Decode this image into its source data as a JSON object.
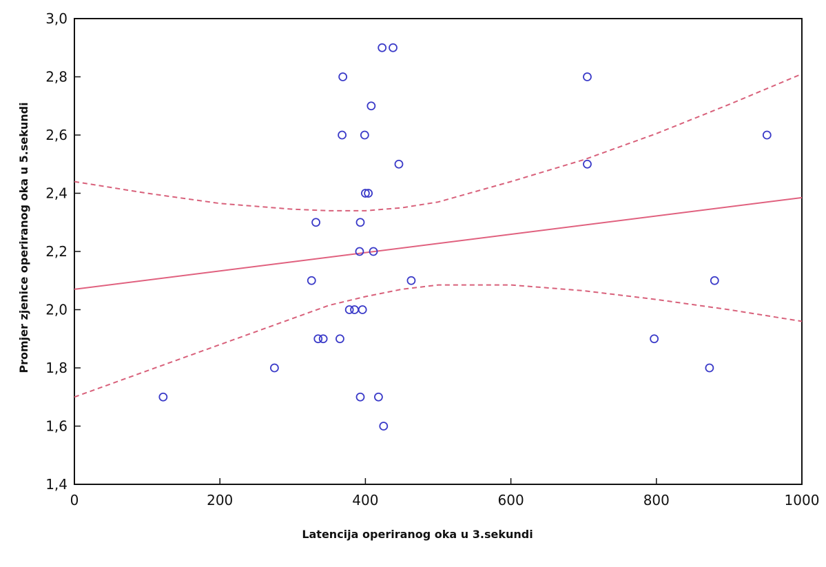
{
  "chart_data": {
    "type": "scatter",
    "title": "",
    "xlabel": "Latencija operiranog oka u 3.sekundi",
    "ylabel": "Promjer zjenice operiranog oka u 5.sekundi",
    "xlim": [
      0,
      1000
    ],
    "ylim": [
      1.4,
      3.0
    ],
    "x_ticks": [
      0,
      200,
      400,
      600,
      800,
      1000
    ],
    "x_tick_labels": [
      "0",
      "200",
      "400",
      "600",
      "800",
      "1000"
    ],
    "y_ticks": [
      1.4,
      1.6,
      1.8,
      2.0,
      2.2,
      2.4,
      2.6,
      2.8,
      3.0
    ],
    "y_tick_labels": [
      "1,4",
      "1,6",
      "1,8",
      "2,0",
      "2,2",
      "2,4",
      "2,6",
      "2,8",
      "3,0"
    ],
    "grid": false,
    "points": [
      {
        "x": 122,
        "y": 1.7
      },
      {
        "x": 275,
        "y": 1.8
      },
      {
        "x": 326,
        "y": 2.1
      },
      {
        "x": 332,
        "y": 2.3
      },
      {
        "x": 335,
        "y": 1.9
      },
      {
        "x": 342,
        "y": 1.9
      },
      {
        "x": 365,
        "y": 1.9
      },
      {
        "x": 368,
        "y": 2.6
      },
      {
        "x": 369,
        "y": 2.8
      },
      {
        "x": 378,
        "y": 2.0
      },
      {
        "x": 385,
        "y": 2.0
      },
      {
        "x": 392,
        "y": 2.2
      },
      {
        "x": 393,
        "y": 2.3
      },
      {
        "x": 393,
        "y": 1.7
      },
      {
        "x": 396,
        "y": 2.0
      },
      {
        "x": 399,
        "y": 2.6
      },
      {
        "x": 400,
        "y": 2.4
      },
      {
        "x": 404,
        "y": 2.4
      },
      {
        "x": 408,
        "y": 2.7
      },
      {
        "x": 411,
        "y": 2.2
      },
      {
        "x": 418,
        "y": 1.7
      },
      {
        "x": 423,
        "y": 2.9
      },
      {
        "x": 425,
        "y": 1.6
      },
      {
        "x": 438,
        "y": 2.9
      },
      {
        "x": 446,
        "y": 2.5
      },
      {
        "x": 463,
        "y": 2.1
      },
      {
        "x": 705,
        "y": 2.8
      },
      {
        "x": 705,
        "y": 2.5
      },
      {
        "x": 797,
        "y": 1.9
      },
      {
        "x": 873,
        "y": 1.8
      },
      {
        "x": 880,
        "y": 2.1
      },
      {
        "x": 952,
        "y": 2.6
      }
    ],
    "regression_line": {
      "x": [
        0,
        1000
      ],
      "y": [
        2.07,
        2.385
      ]
    },
    "confidence_upper": {
      "x": [
        0,
        100,
        200,
        300,
        350,
        400,
        450,
        500,
        600,
        700,
        800,
        900,
        1000
      ],
      "y": [
        2.44,
        2.4,
        2.365,
        2.345,
        2.34,
        2.34,
        2.35,
        2.37,
        2.44,
        2.515,
        2.605,
        2.705,
        2.81
      ]
    },
    "confidence_lower": {
      "x": [
        0,
        100,
        200,
        300,
        350,
        400,
        450,
        500,
        600,
        700,
        800,
        900,
        1000
      ],
      "y": [
        1.7,
        1.79,
        1.88,
        1.97,
        2.015,
        2.045,
        2.07,
        2.085,
        2.085,
        2.065,
        2.035,
        2.0,
        1.96
      ]
    },
    "colors": {
      "points": "#3a3ac8",
      "regression": "#e0607e",
      "confidence": "#d8607a",
      "axis": "#111111"
    }
  }
}
